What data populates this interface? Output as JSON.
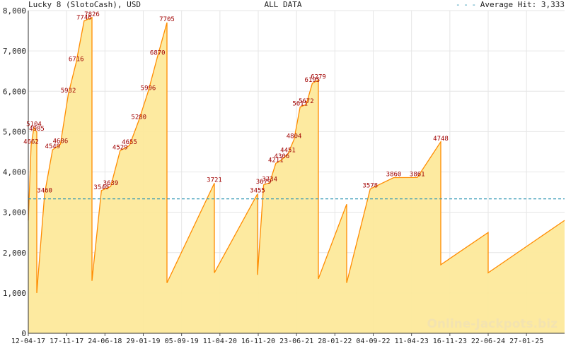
{
  "header": {
    "title": "Lucky 8 (SlotoCash), USD",
    "center": "ALL DATA",
    "legend_dash": "- - -",
    "legend_label": "Average Hit: 3,333"
  },
  "watermark": "Online-Jackpots.biz",
  "colors": {
    "area_fill": "#fde99b",
    "line": "#ff8c00",
    "average_line": "#2f96b4",
    "peak_label": "#a00000",
    "grid": "#e6e6e6"
  },
  "chart_data": {
    "type": "area",
    "title": "Lucky 8 (SlotoCash), USD",
    "xlabel": "",
    "ylabel": "",
    "ylim": [
      0,
      8000
    ],
    "grid": true,
    "y_ticks": [
      0,
      1000,
      2000,
      3000,
      4000,
      5000,
      6000,
      7000,
      8000
    ],
    "y_tick_labels": [
      "0",
      "1,000",
      "2,000",
      "3,000",
      "4,000",
      "5,000",
      "6,000",
      "7,000",
      "8,000"
    ],
    "x_ticks": [
      "12-04-17",
      "17-11-17",
      "24-06-18",
      "29-01-19",
      "05-09-19",
      "11-04-20",
      "16-11-20",
      "23-06-21",
      "28-01-22",
      "04-09-22",
      "11-04-23",
      "16-11-23",
      "22-06-24",
      "27-01-25"
    ],
    "average_hit": 3333,
    "cycles": [
      {
        "start": 2800,
        "peaks": [
          4662,
          5104,
          4985
        ]
      },
      {
        "start": 1000,
        "peaks": [
          3460,
          4549,
          4686,
          5932,
          6716,
          7746,
          7826
        ]
      },
      {
        "start": 1300,
        "peaks": [
          3540,
          3639,
          4529,
          4655,
          5280,
          5996,
          6870,
          7705
        ]
      },
      {
        "start": 1250,
        "peaks": [
          3721
        ]
      },
      {
        "start": 1500,
        "peaks": [
          3455
        ]
      },
      {
        "start": 1450,
        "peaks": [
          3679,
          3734,
          4211,
          4306,
          4451,
          4804,
          5611,
          5672,
          6195,
          6279
        ]
      },
      {
        "start": 1350,
        "peaks": [
          3200
        ]
      },
      {
        "start": 1250,
        "peaks": [
          3578,
          3860,
          3861,
          4748
        ]
      },
      {
        "start": 1700,
        "peaks": [
          2500
        ]
      },
      {
        "start": 1500,
        "peaks": [
          2800
        ]
      }
    ],
    "peak_labels": [
      4662,
      5104,
      4985,
      3460,
      4549,
      4686,
      5932,
      6716,
      7746,
      7826,
      3540,
      3639,
      4529,
      4655,
      5280,
      5996,
      6870,
      7705,
      3721,
      3455,
      3679,
      3734,
      4211,
      4306,
      4451,
      4804,
      5611,
      5672,
      6195,
      6279,
      3578,
      3860,
      3861,
      4748
    ]
  }
}
